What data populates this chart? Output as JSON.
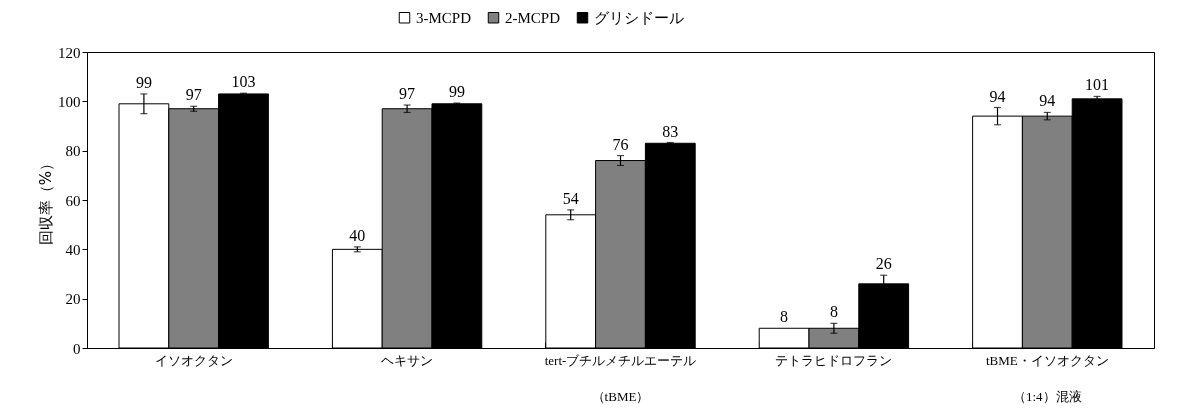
{
  "chart_data": {
    "type": "bar",
    "ylabel": "回収率（%）",
    "categories": [
      "イソオクタン",
      "ヘキサン",
      "tert-ブチルメチルエーテル（tBME）",
      "テトラヒドロフラン",
      "tBME・イソオクタン（1:4）混液"
    ],
    "series": [
      {
        "name": "3-MCPD",
        "color": "#ffffff",
        "values": [
          99,
          40,
          54,
          8,
          94
        ],
        "errors": [
          4,
          1,
          2,
          null,
          3.5
        ]
      },
      {
        "name": "2-MCPD",
        "color": "#808080",
        "values": [
          97,
          97,
          76,
          8,
          94
        ],
        "errors": [
          1,
          1.5,
          2,
          2,
          1.5
        ]
      },
      {
        "name": "グリシドール",
        "color": "#000000",
        "values": [
          103,
          99,
          83,
          26,
          101
        ],
        "errors": [
          0.3,
          0.3,
          0.3,
          3.5,
          1
        ]
      }
    ],
    "ylim": [
      0,
      120
    ],
    "yticks": [
      0,
      20,
      40,
      60,
      80,
      100,
      120
    ],
    "grid": false,
    "legend": "top",
    "data_labels": true
  }
}
